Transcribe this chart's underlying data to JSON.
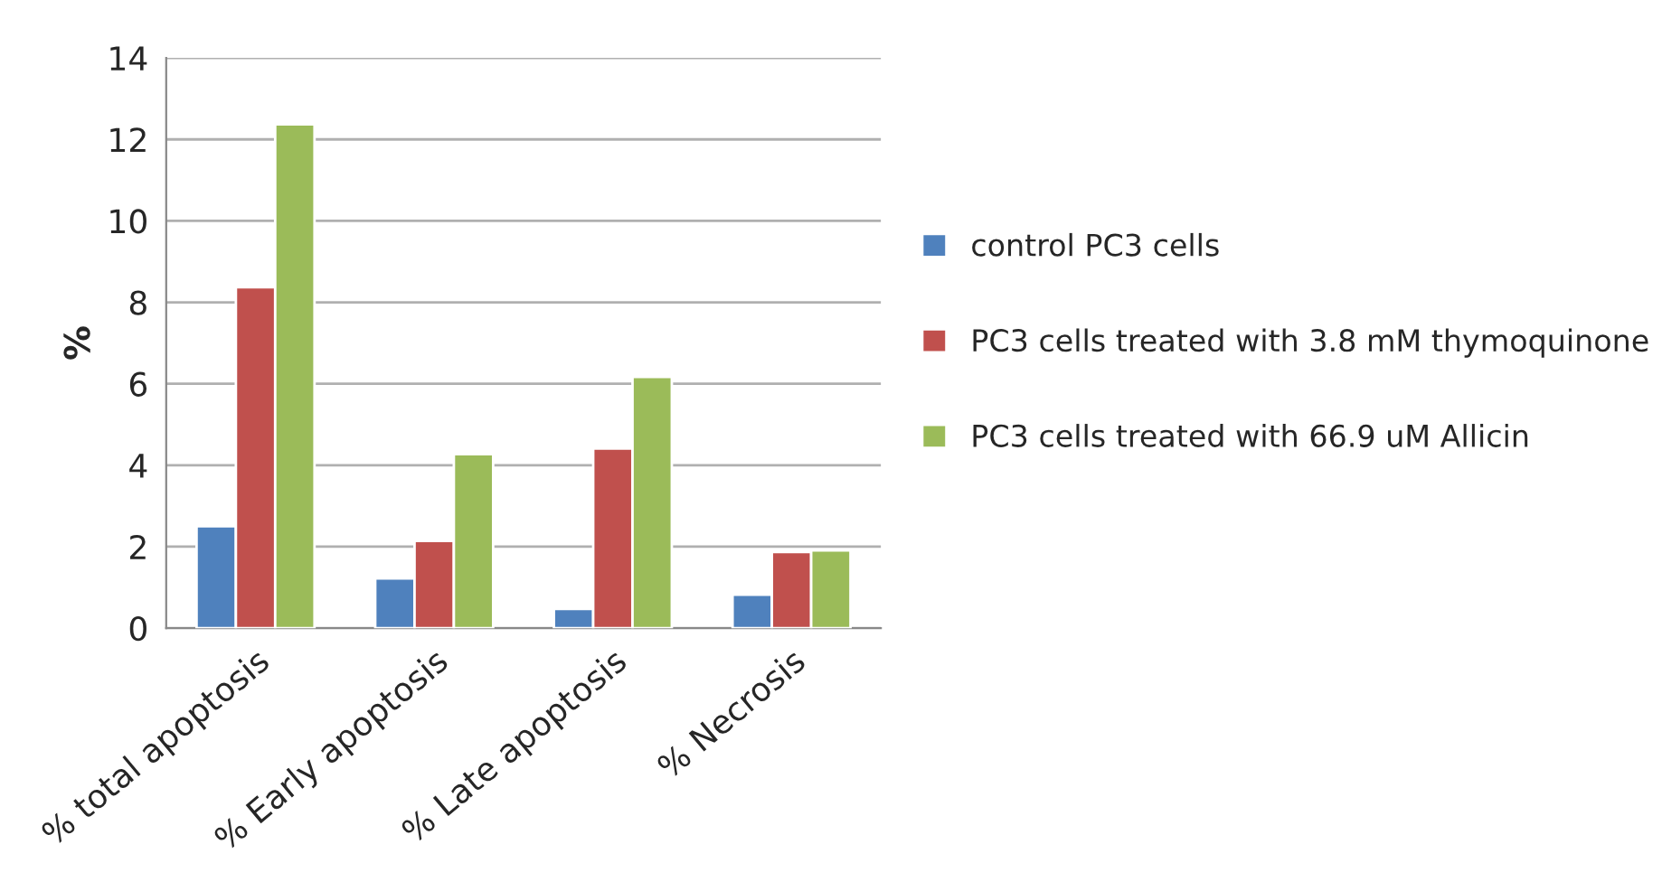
{
  "chart_data": {
    "type": "bar",
    "ylabel": "%",
    "categories": [
      "% total apoptosis",
      "% Early apoptosis",
      "% Late apoptosis",
      "% Necrosis"
    ],
    "series": [
      {
        "name": "control PC3 cells",
        "color": "#4f81bd",
        "values": [
          2.5,
          1.22,
          0.47,
          0.82
        ]
      },
      {
        "name": "PC3 cells treated with 3.8 mM thymoquinone",
        "color": "#c0504d",
        "values": [
          8.37,
          2.14,
          4.41,
          1.87
        ]
      },
      {
        "name": "PC3 cells treated with 66.9 uM Allicin",
        "color": "#9bbb59",
        "values": [
          12.37,
          4.27,
          6.17,
          1.91
        ]
      }
    ],
    "ylim": [
      0,
      14
    ],
    "yticks": [
      0,
      2,
      4,
      6,
      8,
      10,
      12,
      14
    ],
    "grid": "y",
    "legend": "right"
  }
}
